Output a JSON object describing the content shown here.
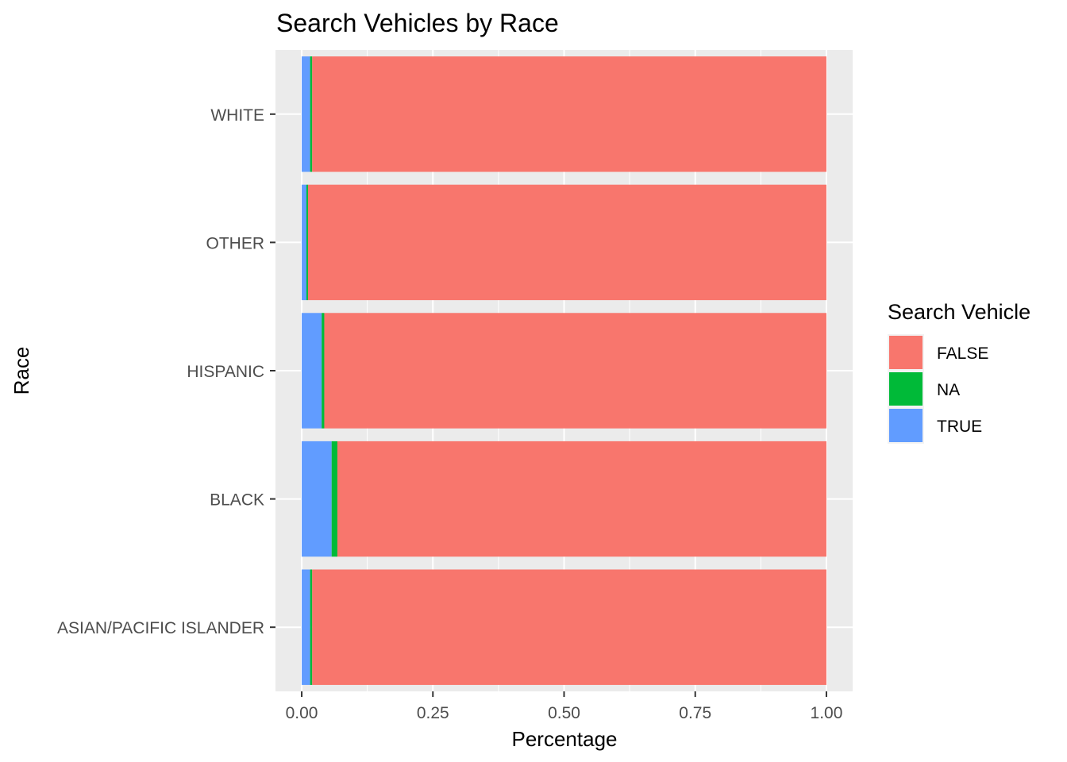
{
  "chart_data": {
    "type": "bar",
    "orientation": "horizontal",
    "stacked": true,
    "title": "Search Vehicles by Race",
    "xlabel": "Percentage",
    "ylabel": "Race",
    "xlim": [
      -0.05,
      1.05
    ],
    "xticks": [
      "0.00",
      "0.25",
      "0.50",
      "0.75",
      "1.00"
    ],
    "xtick_values": [
      0,
      0.25,
      0.5,
      0.75,
      1.0
    ],
    "categories": [
      "ASIAN/PACIFIC ISLANDER",
      "BLACK",
      "HISPANIC",
      "OTHER",
      "WHITE"
    ],
    "series": [
      {
        "name": "TRUE",
        "color": "#619CFF",
        "values": [
          0.016,
          0.057,
          0.038,
          0.009,
          0.016
        ]
      },
      {
        "name": "NA",
        "color": "#00BA38",
        "values": [
          0.004,
          0.011,
          0.005,
          0.003,
          0.004
        ]
      },
      {
        "name": "FALSE",
        "color": "#F8766D",
        "values": [
          0.98,
          0.932,
          0.957,
          0.988,
          0.98
        ]
      }
    ],
    "legend": {
      "title": "Search Vehicle",
      "position": "right",
      "entries": [
        "FALSE",
        "NA",
        "TRUE"
      ]
    },
    "grid": true,
    "panel_background": "#EBEBEB",
    "grid_color": "#FFFFFF"
  }
}
